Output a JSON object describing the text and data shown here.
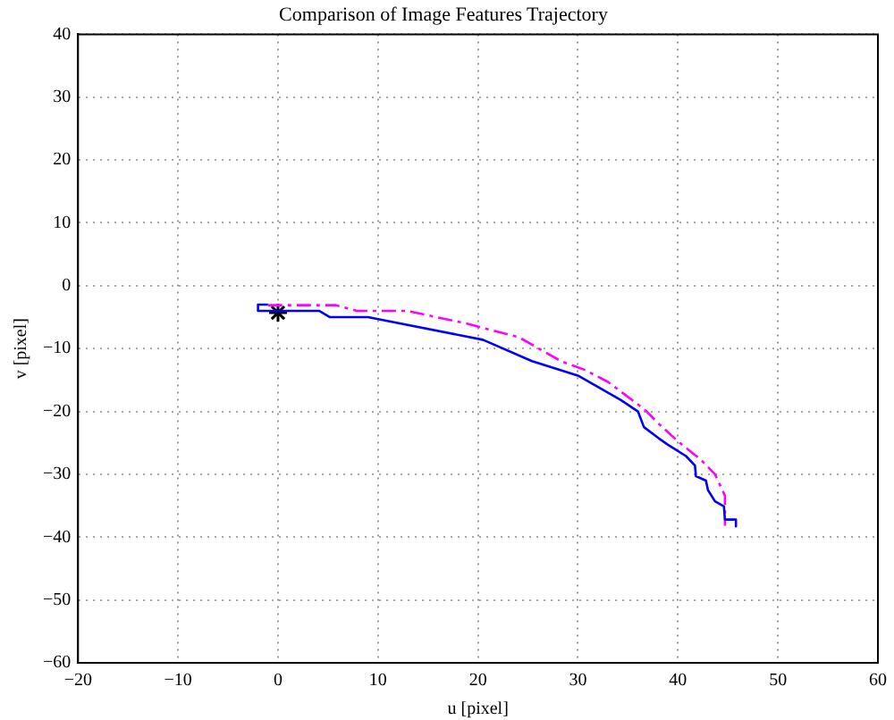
{
  "chart_data": {
    "type": "line",
    "title": "Comparison of Image Features Trajectory",
    "xlabel": "u [pixel]",
    "ylabel": "v [pixel]",
    "xlim": [
      -20,
      60
    ],
    "xticks": [
      -20,
      -10,
      0,
      10,
      20,
      30,
      40,
      50,
      60
    ],
    "ylim": [
      -60,
      40
    ],
    "yticks": [
      -60,
      -50,
      -40,
      -30,
      -20,
      -10,
      0,
      10,
      20,
      30,
      40
    ],
    "grid": true,
    "series": [
      {
        "color": "#0000ff",
        "line_style": "solid",
        "marker": "none",
        "x": [
          -1,
          -2,
          -2,
          4.1,
          5.2,
          9,
          20.5,
          25.4,
          30,
          34.3,
          36,
          36.6,
          38.1,
          39,
          40.8,
          41.7,
          41.8,
          42.8,
          43,
          43.7,
          44.6,
          44.7,
          45.8,
          45.8
        ],
        "values": [
          -3,
          -3,
          -4,
          -4,
          -5,
          -5,
          -8.6,
          -12,
          -14.3,
          -18.2,
          -20,
          -22.5,
          -24.3,
          -25.3,
          -27.1,
          -28.6,
          -30.3,
          -31,
          -32.5,
          -34.3,
          -35.1,
          -37.2,
          -37.2,
          -38.3
        ]
      },
      {
        "color": "#ff00ff",
        "line_style": "dashed",
        "marker": "none",
        "x": [
          -1,
          5.8,
          7.9,
          12.9,
          18.8,
          24.1,
          28.3,
          30.7,
          33,
          36.6,
          38.1,
          40.1,
          42.3,
          43.7,
          44.7,
          44.7
        ],
        "values": [
          -3.1,
          -3.1,
          -4,
          -4,
          -6,
          -8.2,
          -12,
          -13.4,
          -15.3,
          -19.6,
          -22,
          -24.9,
          -27.7,
          -30,
          -33.4,
          -38.2
        ]
      },
      {
        "type": "scatter",
        "color": "#000000",
        "marker": "cross",
        "x": [
          0
        ],
        "values": [
          -4.3
        ]
      }
    ]
  }
}
